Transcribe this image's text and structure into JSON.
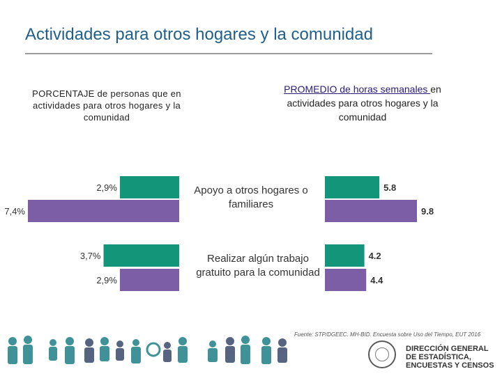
{
  "title": "Actividades para otros hogares y la comunidad",
  "left_heading": "PORCENTAJE de personas que en actividades para otros hogares y la comunidad",
  "right_heading_underlined": "PROMEDIO de horas semanales ",
  "right_heading_rest": "en actividades para otros hogares y la comunidad",
  "source": "Fuente: STP/DGEEC. MH-BID. Encuesta sobre Uso del Tiempo, EUT 2016",
  "logo": {
    "line1": "DIRECCIÓN GENERAL",
    "line2": "DE ESTADÍSTICA,",
    "line3": "ENCUESTAS Y CENSOS"
  },
  "colors": {
    "green": "#13957a",
    "purple": "#7c5ea6",
    "title": "#1f5f8b"
  },
  "chart_data": [
    {
      "type": "bar",
      "orientation": "horizontal",
      "title": "PORCENTAJE de personas que en actividades para otros hogares y la comunidad",
      "categories": [
        "Apoyo a otros hogares o familiares",
        "Realizar algún trabajo gratuito para la comunidad"
      ],
      "series": [
        {
          "name": "green",
          "values": [
            2.9,
            3.7
          ],
          "labels": [
            "2,9%",
            "3,7%"
          ]
        },
        {
          "name": "purple",
          "values": [
            7.4,
            2.9
          ],
          "labels": [
            "7,4%",
            "2,9%"
          ]
        }
      ],
      "xlim": [
        0,
        7.4
      ],
      "direction": "right-to-left"
    },
    {
      "type": "bar",
      "orientation": "horizontal",
      "title": "PROMEDIO de horas semanales en actividades para otros hogares y la comunidad",
      "categories": [
        "Apoyo a otros hogares o familiares",
        "Realizar algún trabajo gratuito para la comunidad"
      ],
      "series": [
        {
          "name": "green",
          "values": [
            5.8,
            4.2
          ],
          "labels": [
            "5.8",
            "4.2"
          ]
        },
        {
          "name": "purple",
          "values": [
            9.8,
            4.4
          ],
          "labels": [
            "9.8",
            "4.4"
          ]
        }
      ],
      "xlim": [
        0,
        9.8
      ],
      "direction": "left-to-right"
    }
  ]
}
